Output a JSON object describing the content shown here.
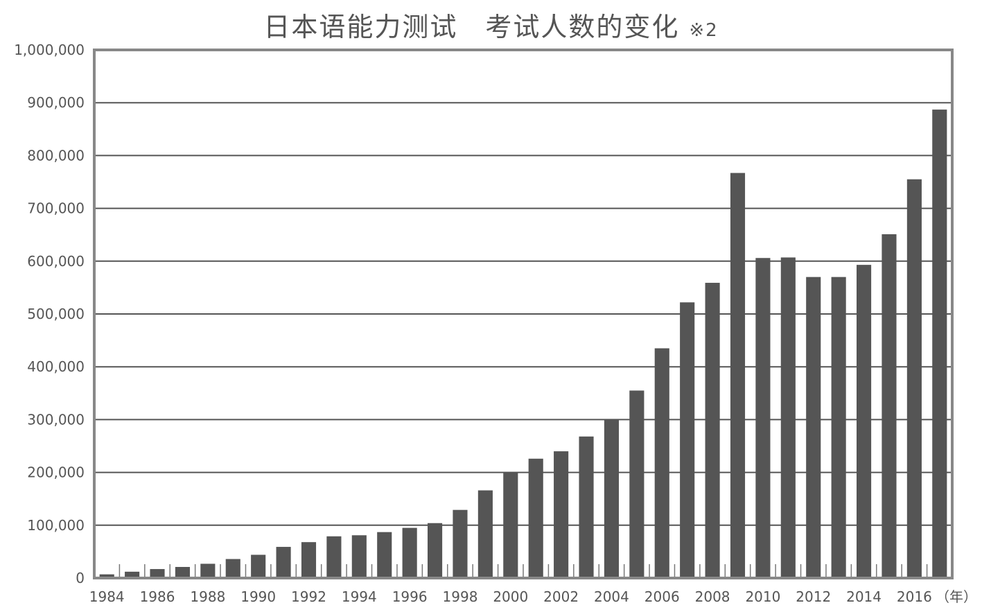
{
  "chart_data": {
    "type": "bar",
    "title": "日本语能力测试　考试人数的变化",
    "title_note": "※2",
    "xlabel": "（年）",
    "ylabel": "",
    "ylim": [
      0,
      1000000
    ],
    "y_ticks": [
      "0",
      "100,000",
      "200,000",
      "300,000",
      "400,000",
      "500,000",
      "600,000",
      "700,000",
      "800,000",
      "900,000",
      "1,000,000"
    ],
    "x_tick_labels": [
      "1984",
      "1986",
      "1988",
      "1990",
      "1992",
      "1994",
      "1996",
      "1998",
      "2000",
      "2002",
      "2004",
      "2006",
      "2008",
      "2010",
      "2012",
      "2014",
      "2016"
    ],
    "categories": [
      "1984",
      "1985",
      "1986",
      "1987",
      "1988",
      "1989",
      "1990",
      "1991",
      "1992",
      "1993",
      "1994",
      "1995",
      "1996",
      "1997",
      "1998",
      "1999",
      "2000",
      "2001",
      "2002",
      "2003",
      "2004",
      "2005",
      "2006",
      "2007",
      "2008",
      "2009",
      "2010",
      "2011",
      "2012",
      "2013",
      "2014",
      "2015",
      "2016",
      "2017"
    ],
    "values": [
      7000,
      12000,
      17000,
      21000,
      27000,
      36000,
      44000,
      59000,
      68000,
      79000,
      81000,
      87000,
      95000,
      104000,
      129000,
      166000,
      199000,
      226000,
      240000,
      268000,
      300000,
      355000,
      435000,
      522000,
      559000,
      767000,
      606000,
      607000,
      570000,
      570000,
      593000,
      651000,
      755000,
      887000
    ],
    "grid": true,
    "bar_color": "#555555",
    "grid_color": "#555555",
    "axis_color": "#888888"
  }
}
